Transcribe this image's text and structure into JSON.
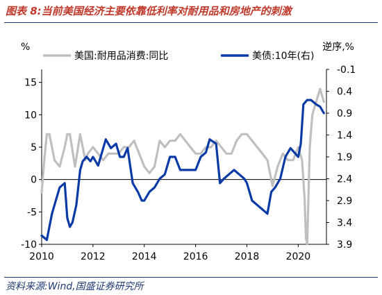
{
  "title": "图表 8:当前美国经济主要依靠低利率对耐用品和房地产的刺激",
  "source": "资料来源:Wind,国盛证券研究所",
  "colors": {
    "title": "#c0392b",
    "left_series": "#bfbfbf",
    "right_series": "#0a3aa6",
    "source": "#1f3b73"
  },
  "chart_data": {
    "type": "line",
    "left_axis": {
      "unit_label": "%",
      "ylim": [
        -10,
        17
      ],
      "ticks": [
        -10,
        -5,
        0,
        5,
        10,
        15
      ]
    },
    "right_axis": {
      "unit_label": "逆序,%",
      "inverted": true,
      "ylim": [
        -0.1,
        3.9
      ],
      "ticks": [
        -0.1,
        0.4,
        0.9,
        1.4,
        1.9,
        2.4,
        2.9,
        3.4,
        3.9
      ]
    },
    "x_axis": {
      "xlim": [
        2010,
        2021.1
      ],
      "ticks": [
        2010,
        2012,
        2014,
        2016,
        2018,
        2020
      ]
    },
    "grid": false,
    "legend_position": "top",
    "series": [
      {
        "name": "美国:耐用品消费:同比",
        "axis": "left",
        "x": [
          2010.0,
          2010.1,
          2010.2,
          2010.3,
          2010.5,
          2010.7,
          2010.9,
          2011.0,
          2011.1,
          2011.3,
          2011.5,
          2011.7,
          2011.8,
          2012.0,
          2012.2,
          2012.4,
          2012.6,
          2012.8,
          2013.0,
          2013.2,
          2013.4,
          2013.6,
          2013.8,
          2014.0,
          2014.2,
          2014.4,
          2014.6,
          2014.8,
          2015.0,
          2015.2,
          2015.4,
          2015.6,
          2015.8,
          2016.0,
          2016.2,
          2016.4,
          2016.6,
          2016.8,
          2017.0,
          2017.2,
          2017.4,
          2017.6,
          2017.8,
          2018.0,
          2018.2,
          2018.4,
          2018.6,
          2018.8,
          2019.0,
          2019.2,
          2019.4,
          2019.6,
          2019.8,
          2020.0,
          2020.15,
          2020.25,
          2020.3,
          2020.35,
          2020.45,
          2020.55,
          2020.7,
          2020.85,
          2021.0
        ],
        "y": [
          -2,
          3,
          7,
          7,
          3,
          2,
          5,
          7,
          7,
          2,
          7,
          3,
          4,
          5,
          4,
          3,
          4,
          4,
          4,
          5,
          5,
          6,
          4,
          2,
          1,
          2,
          6,
          5,
          6,
          6,
          7,
          6,
          5,
          4,
          4,
          5,
          5,
          6,
          5,
          4,
          4,
          6,
          7,
          7,
          6,
          5,
          4,
          3,
          -1,
          2,
          4,
          3,
          3,
          5,
          3,
          -3,
          -9,
          -10,
          5,
          10,
          12,
          14,
          12
        ]
      },
      {
        "name": "美债:10年(右)",
        "axis": "right",
        "x": [
          2010.0,
          2010.2,
          2010.3,
          2010.4,
          2010.5,
          2010.6,
          2010.7,
          2010.9,
          2011.0,
          2011.1,
          2011.2,
          2011.35,
          2011.5,
          2011.6,
          2011.75,
          2011.9,
          2012.0,
          2012.2,
          2012.35,
          2012.5,
          2012.7,
          2012.9,
          2013.05,
          2013.2,
          2013.35,
          2013.55,
          2013.75,
          2013.9,
          2014.0,
          2014.2,
          2014.4,
          2014.6,
          2014.8,
          2015.0,
          2015.2,
          2015.4,
          2015.6,
          2015.8,
          2016.0,
          2016.2,
          2016.4,
          2016.55,
          2016.8,
          2016.95,
          2017.1,
          2017.3,
          2017.5,
          2017.7,
          2017.9,
          2018.0,
          2018.2,
          2018.4,
          2018.6,
          2018.8,
          2018.95,
          2019.1,
          2019.3,
          2019.5,
          2019.7,
          2019.85,
          2020.0,
          2020.1,
          2020.2,
          2020.35,
          2020.5,
          2020.7,
          2020.85,
          2021.0
        ],
        "y": [
          3.7,
          3.8,
          3.5,
          3.2,
          3.0,
          2.8,
          2.6,
          2.5,
          3.3,
          3.5,
          3.4,
          3.0,
          2.2,
          2.0,
          1.9,
          2.0,
          1.9,
          2.1,
          1.8,
          1.5,
          1.7,
          1.6,
          1.9,
          1.9,
          1.7,
          2.5,
          2.7,
          2.9,
          2.9,
          2.7,
          2.6,
          2.4,
          2.3,
          1.9,
          1.9,
          2.2,
          2.2,
          2.2,
          2.2,
          1.9,
          1.8,
          1.5,
          1.6,
          2.5,
          2.4,
          2.3,
          2.2,
          2.3,
          2.4,
          2.5,
          2.9,
          3.0,
          3.1,
          3.2,
          2.7,
          2.6,
          2.4,
          1.9,
          1.7,
          1.8,
          1.9,
          1.6,
          0.7,
          0.6,
          0.6,
          0.7,
          0.75,
          0.9
        ]
      }
    ]
  }
}
